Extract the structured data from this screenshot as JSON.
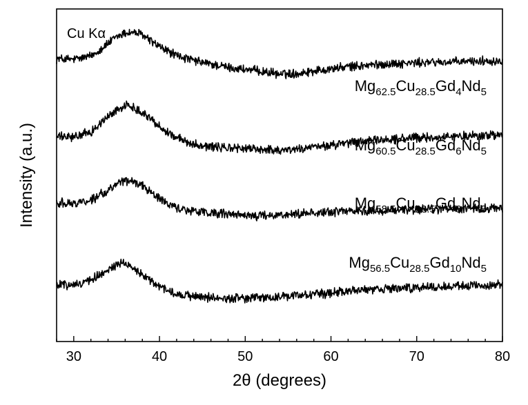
{
  "chart_data": {
    "type": "line",
    "annotation": "Cu Kα",
    "xlabel": "2θ (degrees)",
    "ylabel": "Intensity (a.u.)",
    "xlim": [
      28,
      80
    ],
    "xticks": [
      30,
      40,
      50,
      60,
      70,
      80
    ],
    "y_ticks_shown": false,
    "grid": false,
    "legend": "inline labels above each curve",
    "line_color": "#000000",
    "series": [
      {
        "name": "Mg62.5Cu28.5Gd4Nd5",
        "label_parts": [
          [
            "Mg",
            ""
          ],
          [
            "62.5",
            "sub"
          ],
          [
            "Cu",
            ""
          ],
          [
            "28.5",
            "sub"
          ],
          [
            "Gd",
            ""
          ],
          [
            "4",
            "sub"
          ],
          [
            "Nd",
            ""
          ],
          [
            "5",
            "sub"
          ]
        ],
        "x": [
          28,
          30,
          32,
          34,
          35,
          36,
          37,
          38,
          39,
          40,
          42,
          44,
          46,
          48,
          50,
          52,
          54,
          56,
          58,
          60,
          62,
          64,
          66,
          68,
          70,
          72,
          74,
          76,
          78,
          80
        ],
        "y": [
          4.25,
          4.24,
          4.29,
          4.48,
          4.58,
          4.64,
          4.65,
          4.61,
          4.52,
          4.43,
          4.3,
          4.22,
          4.17,
          4.12,
          4.09,
          4.06,
          4.02,
          4.03,
          4.07,
          4.1,
          4.13,
          4.15,
          4.17,
          4.18,
          4.19,
          4.2,
          4.2,
          4.21,
          4.22,
          4.22
        ]
      },
      {
        "name": "Mg60.5Cu28.5Gd6Nd5",
        "label_parts": [
          [
            "Mg",
            ""
          ],
          [
            "60.5",
            "sub"
          ],
          [
            "Cu",
            ""
          ],
          [
            "28.5",
            "sub"
          ],
          [
            "Gd",
            ""
          ],
          [
            "6",
            "sub"
          ],
          [
            "Nd",
            ""
          ],
          [
            "5",
            "sub"
          ]
        ],
        "x": [
          28,
          30,
          32,
          34,
          35,
          36,
          37,
          38,
          39,
          40,
          42,
          44,
          46,
          48,
          50,
          52,
          54,
          56,
          58,
          60,
          62,
          64,
          66,
          68,
          70,
          72,
          74,
          76,
          78,
          80
        ],
        "y": [
          3.08,
          3.07,
          3.15,
          3.38,
          3.48,
          3.55,
          3.52,
          3.45,
          3.35,
          3.23,
          3.06,
          2.97,
          2.93,
          2.91,
          2.9,
          2.89,
          2.88,
          2.89,
          2.92,
          2.95,
          2.98,
          3.01,
          3.03,
          3.05,
          3.06,
          3.07,
          3.08,
          3.09,
          3.1,
          3.1
        ]
      },
      {
        "name": "Mg58.5Cu28.5Gd8Nd5",
        "label_parts": [
          [
            "Mg",
            ""
          ],
          [
            "58.5",
            "sub"
          ],
          [
            "Cu",
            ""
          ],
          [
            "28.5",
            "sub"
          ],
          [
            "Gd",
            ""
          ],
          [
            "8",
            "sub"
          ],
          [
            "Nd",
            ""
          ],
          [
            "5",
            "sub"
          ]
        ],
        "x": [
          28,
          30,
          32,
          34,
          35,
          36,
          37,
          38,
          39,
          40,
          42,
          44,
          46,
          48,
          50,
          52,
          54,
          56,
          58,
          60,
          62,
          64,
          66,
          68,
          70,
          72,
          74,
          76,
          78,
          80
        ],
        "y": [
          2.09,
          2.08,
          2.13,
          2.27,
          2.36,
          2.42,
          2.41,
          2.35,
          2.25,
          2.14,
          2.01,
          1.96,
          1.93,
          1.91,
          1.89,
          1.89,
          1.9,
          1.92,
          1.94,
          1.95,
          1.96,
          1.97,
          1.97,
          1.98,
          1.98,
          1.99,
          1.99,
          2.0,
          2.0,
          2.0
        ]
      },
      {
        "name": "Mg56.5Cu28.5Gd10Nd5",
        "label_parts": [
          [
            "Mg",
            ""
          ],
          [
            "56.5",
            "sub"
          ],
          [
            "Cu",
            ""
          ],
          [
            "28.5",
            "sub"
          ],
          [
            "Gd",
            ""
          ],
          [
            "10",
            "sub"
          ],
          [
            "Nd",
            ""
          ],
          [
            "5",
            "sub"
          ]
        ],
        "x": [
          28,
          30,
          32,
          34,
          35,
          36,
          37,
          38,
          39,
          40,
          42,
          44,
          46,
          48,
          50,
          52,
          54,
          56,
          58,
          60,
          62,
          64,
          66,
          68,
          70,
          72,
          74,
          76,
          78,
          80
        ],
        "y": [
          0.85,
          0.85,
          0.93,
          1.08,
          1.15,
          1.18,
          1.1,
          1.0,
          0.91,
          0.82,
          0.72,
          0.68,
          0.66,
          0.65,
          0.65,
          0.66,
          0.67,
          0.69,
          0.71,
          0.73,
          0.76,
          0.78,
          0.79,
          0.8,
          0.81,
          0.82,
          0.83,
          0.84,
          0.85,
          0.86
        ]
      }
    ]
  }
}
